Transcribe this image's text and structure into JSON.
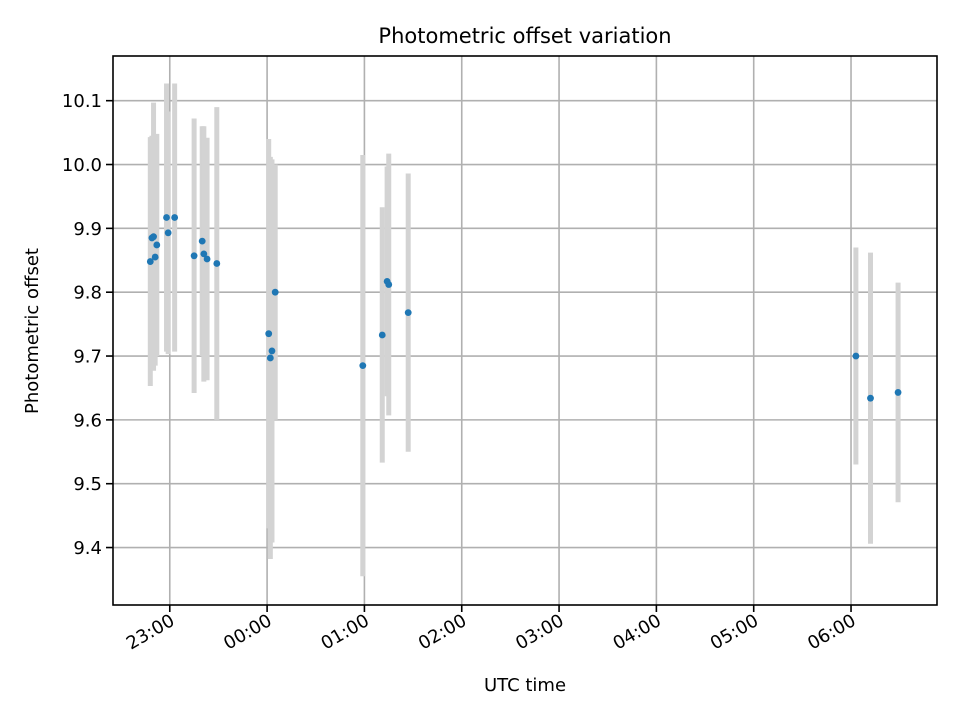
{
  "chart_data": {
    "type": "scatter",
    "title": "Photometric offset variation",
    "xlabel": "UTC time",
    "ylabel": "Photometric offset",
    "x_unit": "UTC time (hours, next day continues past 24:00)",
    "xlim": [
      "22:25",
      "06:53"
    ],
    "ylim": [
      9.31,
      10.17
    ],
    "grid": true,
    "x_ticks": [
      {
        "t": "23:00",
        "label": "23:00"
      },
      {
        "t": "00:00",
        "label": "00:00"
      },
      {
        "t": "01:00",
        "label": "01:00"
      },
      {
        "t": "02:00",
        "label": "02:00"
      },
      {
        "t": "03:00",
        "label": "03:00"
      },
      {
        "t": "04:00",
        "label": "04:00"
      },
      {
        "t": "05:00",
        "label": "05:00"
      },
      {
        "t": "06:00",
        "label": "06:00"
      }
    ],
    "y_ticks": [
      "9.4",
      "9.5",
      "9.6",
      "9.7",
      "9.8",
      "9.9",
      "10.0",
      "10.1"
    ],
    "colors": {
      "points": "#1f77b4",
      "errorbars": "#d3d3d3",
      "grid": "#b0b0b0"
    },
    "series": [
      {
        "points": [
          {
            "t": "22:48",
            "y": 9.848,
            "err": 0.195
          },
          {
            "t": "22:49",
            "y": 9.885,
            "err": 0.16
          },
          {
            "t": "22:50",
            "y": 9.887,
            "err": 0.21
          },
          {
            "t": "22:51",
            "y": 9.855,
            "err": 0.17
          },
          {
            "t": "22:52",
            "y": 9.874,
            "err": 0.174
          },
          {
            "t": "22:58",
            "y": 9.917,
            "err": 0.21
          },
          {
            "t": "22:59",
            "y": 9.893,
            "err": 0.19
          },
          {
            "t": "23:03",
            "y": 9.917,
            "err": 0.21
          },
          {
            "t": "23:15",
            "y": 9.857,
            "err": 0.215
          },
          {
            "t": "23:20",
            "y": 9.88,
            "err": 0.18
          },
          {
            "t": "23:21",
            "y": 9.86,
            "err": 0.2
          },
          {
            "t": "23:23",
            "y": 9.852,
            "err": 0.19
          },
          {
            "t": "23:29",
            "y": 9.845,
            "err": 0.245
          },
          {
            "t": "00:01",
            "y": 9.735,
            "err": 0.305
          },
          {
            "t": "00:02",
            "y": 9.697,
            "err": 0.315
          },
          {
            "t": "00:03",
            "y": 9.708,
            "err": 0.3
          },
          {
            "t": "00:05",
            "y": 9.8,
            "err": 0.2
          },
          {
            "t": "00:59",
            "y": 9.685,
            "err": 0.33
          },
          {
            "t": "01:11",
            "y": 9.733,
            "err": 0.2
          },
          {
            "t": "01:14",
            "y": 9.817,
            "err": 0.18
          },
          {
            "t": "01:15",
            "y": 9.812,
            "err": 0.205
          },
          {
            "t": "01:27",
            "y": 9.768,
            "err": 0.218
          },
          {
            "t": "06:03",
            "y": 9.7,
            "err": 0.17
          },
          {
            "t": "06:12",
            "y": 9.634,
            "err": 0.228
          },
          {
            "t": "06:29",
            "y": 9.643,
            "err": 0.172
          }
        ]
      }
    ]
  }
}
